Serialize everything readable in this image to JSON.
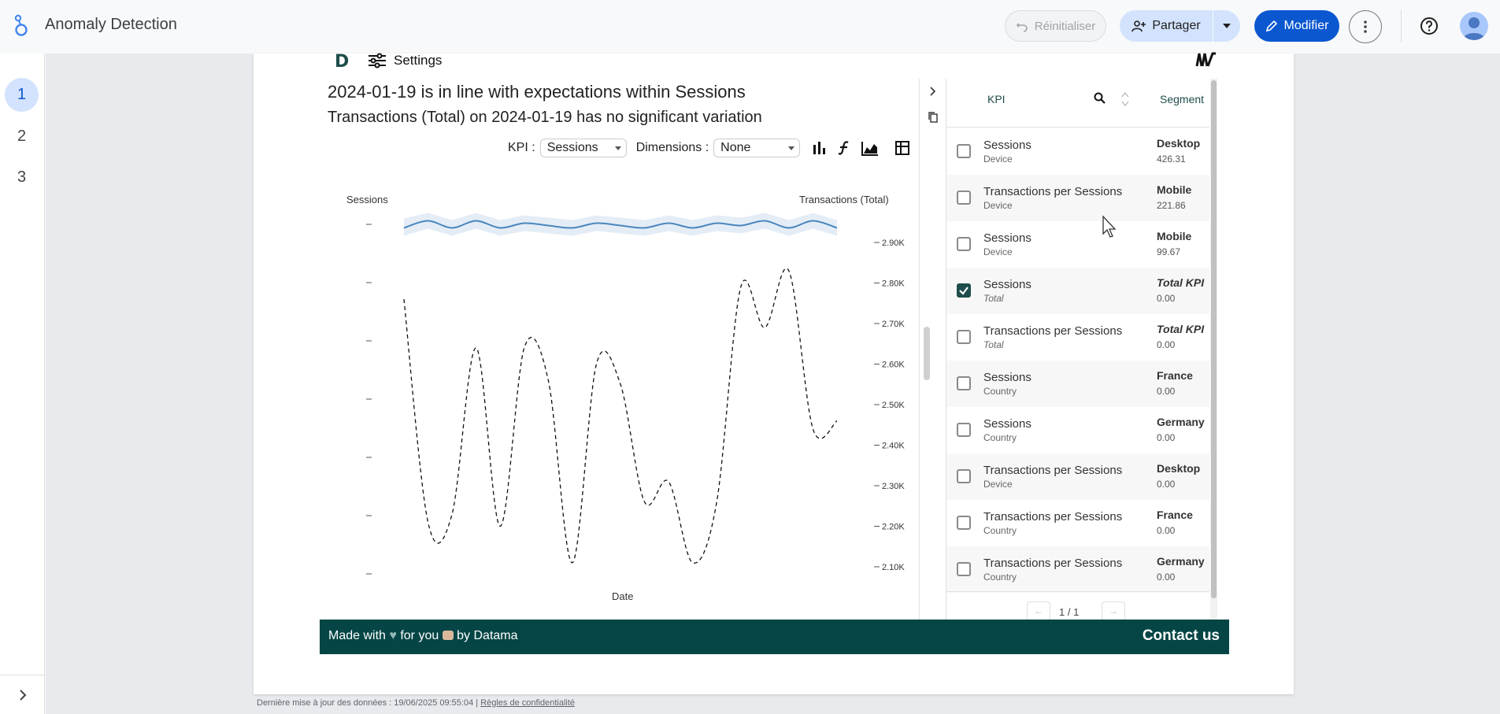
{
  "app": {
    "title": "Anomaly Detection",
    "reset_label": "Réinitialiser",
    "share_label": "Partager",
    "edit_label": "Modifier"
  },
  "pages": [
    "1",
    "2",
    "3"
  ],
  "widget": {
    "settings_label": "Settings",
    "headline1": "2024-01-19 is in line with expectations within Sessions",
    "headline2": "Transactions (Total) on 2024-01-19 has no significant variation",
    "kpi_label": "KPI :",
    "kpi_value": "Sessions",
    "dimensions_label": "Dimensions :",
    "dimensions_value": "None"
  },
  "chart_data": {
    "type": "line",
    "xlabel": "Date",
    "ylabel_left": "Sessions",
    "ylabel_right": "Transactions (Total)",
    "right_ticks": [
      "2.90K",
      "2.80K",
      "2.70K",
      "2.60K",
      "2.50K",
      "2.40K",
      "2.30K",
      "2.20K",
      "2.10K"
    ],
    "right_range": [
      2100,
      2900
    ],
    "series": [
      {
        "name": "Sessions",
        "values": [
          0.97,
          1.0,
          0.97,
          1.0,
          0.97,
          0.99,
          0.98,
          0.97,
          0.99,
          0.98,
          0.97,
          0.99,
          0.97,
          0.99,
          0.98,
          1.0,
          0.97,
          1.0,
          0.97
        ]
      },
      {
        "name": "Transactions (Total)",
        "values": [
          2760,
          2210,
          2230,
          2640,
          2200,
          2640,
          2560,
          2110,
          2600,
          2550,
          2260,
          2310,
          2110,
          2260,
          2790,
          2690,
          2830,
          2440,
          2460
        ]
      }
    ]
  },
  "table": {
    "col_kpi": "KPI",
    "col_segment": "Segment",
    "rows": [
      {
        "kpi": "Sessions",
        "dim": "Device",
        "segment": "Desktop",
        "value": "426.31",
        "checked": false,
        "italic": false
      },
      {
        "kpi": "Transactions per Sessions",
        "dim": "Device",
        "segment": "Mobile",
        "value": "221.86",
        "checked": false,
        "italic": false
      },
      {
        "kpi": "Sessions",
        "dim": "Device",
        "segment": "Mobile",
        "value": "99.67",
        "checked": false,
        "italic": false
      },
      {
        "kpi": "Sessions",
        "dim": "Total",
        "segment": "Total KPI",
        "value": "0.00",
        "checked": true,
        "italic": true
      },
      {
        "kpi": "Transactions per Sessions",
        "dim": "Total",
        "segment": "Total KPI",
        "value": "0.00",
        "checked": false,
        "italic": true
      },
      {
        "kpi": "Sessions",
        "dim": "Country",
        "segment": "France",
        "value": "0.00",
        "checked": false,
        "italic": false
      },
      {
        "kpi": "Sessions",
        "dim": "Country",
        "segment": "Germany",
        "value": "0.00",
        "checked": false,
        "italic": false
      },
      {
        "kpi": "Transactions per Sessions",
        "dim": "Device",
        "segment": "Desktop",
        "value": "0.00",
        "checked": false,
        "italic": false
      },
      {
        "kpi": "Transactions per Sessions",
        "dim": "Country",
        "segment": "France",
        "value": "0.00",
        "checked": false,
        "italic": false
      },
      {
        "kpi": "Transactions per Sessions",
        "dim": "Country",
        "segment": "Germany",
        "value": "0.00",
        "checked": false,
        "italic": false
      }
    ],
    "pager": "1 / 1"
  },
  "brand": {
    "made_prefix": "Made with",
    "made_mid": "for you",
    "made_suffix": "by Datama",
    "contact": "Contact us"
  },
  "footer": {
    "updated": "Dernière mise à jour des données : 19/06/2025 09:55:04",
    "privacy": "Règles de confidentialité"
  }
}
